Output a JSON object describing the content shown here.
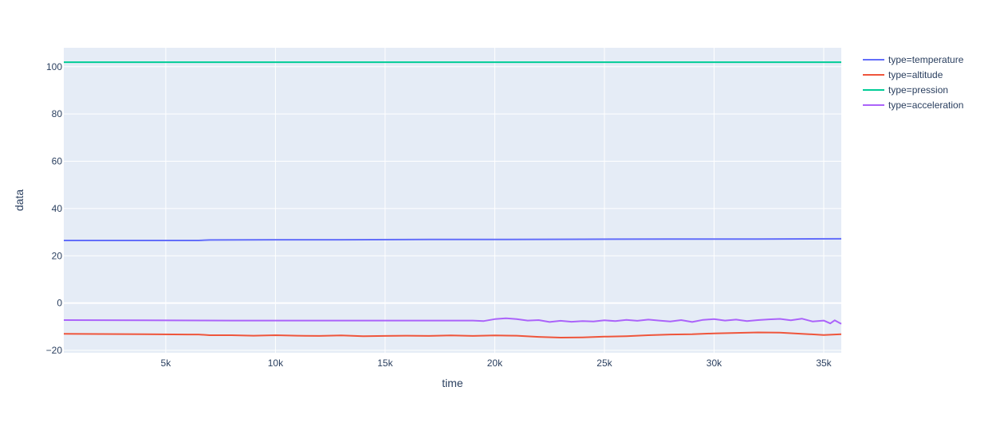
{
  "chart_data": {
    "type": "line",
    "xlabel": "time",
    "ylabel": "data",
    "xlim": [
      350,
      35800
    ],
    "ylim": [
      -21,
      108
    ],
    "grid": true,
    "legend_position": "top-right",
    "background_color": "#e5ecf6",
    "grid_color": "#ffffff",
    "x_ticks": [
      5000,
      10000,
      15000,
      20000,
      25000,
      30000,
      35000
    ],
    "x_tick_labels": [
      "5k",
      "10k",
      "15k",
      "20k",
      "25k",
      "30k",
      "35k"
    ],
    "y_ticks": [
      -20,
      0,
      20,
      40,
      60,
      80,
      100
    ],
    "y_tick_labels": [
      "−20",
      "0",
      "20",
      "40",
      "60",
      "80",
      "100"
    ],
    "series": [
      {
        "name": "type=temperature",
        "color": "#636efa",
        "x": [
          350,
          3000,
          6500,
          7000,
          10000,
          13000,
          17000,
          20000,
          24000,
          28000,
          32000,
          35800
        ],
        "y": [
          26.5,
          26.5,
          26.5,
          26.7,
          26.8,
          26.8,
          26.9,
          26.9,
          27.0,
          27.1,
          27.1,
          27.2
        ]
      },
      {
        "name": "type=altitude",
        "color": "#ef553b",
        "x": [
          350,
          2000,
          4000,
          6000,
          6500,
          7000,
          8000,
          9000,
          10000,
          11000,
          12000,
          13000,
          14000,
          15000,
          16000,
          17000,
          18000,
          19000,
          20000,
          21000,
          22000,
          23000,
          24000,
          25000,
          26000,
          27000,
          28000,
          29000,
          30000,
          31000,
          32000,
          33000,
          34000,
          35000,
          35800
        ],
        "y": [
          -13.0,
          -13.1,
          -13.2,
          -13.3,
          -13.3,
          -13.6,
          -13.6,
          -13.8,
          -13.6,
          -13.8,
          -13.9,
          -13.7,
          -14.0,
          -13.9,
          -13.8,
          -13.9,
          -13.7,
          -13.9,
          -13.7,
          -13.8,
          -14.3,
          -14.6,
          -14.5,
          -14.2,
          -14.0,
          -13.6,
          -13.3,
          -13.2,
          -12.8,
          -12.6,
          -12.4,
          -12.5,
          -13.0,
          -13.5,
          -13.2
        ]
      },
      {
        "name": "type=pression",
        "color": "#00cc96",
        "x": [
          350,
          35800
        ],
        "y": [
          101.9,
          101.9
        ]
      },
      {
        "name": "type=acceleration",
        "color": "#ab63fa",
        "x": [
          350,
          4000,
          8000,
          12000,
          16000,
          19000,
          19500,
          20000,
          20500,
          21000,
          21500,
          22000,
          22500,
          23000,
          23500,
          24000,
          24500,
          25000,
          25500,
          26000,
          26500,
          27000,
          27500,
          28000,
          28500,
          29000,
          29500,
          30000,
          30500,
          31000,
          31500,
          32000,
          32500,
          33000,
          33500,
          34000,
          34500,
          35000,
          35300,
          35500,
          35800
        ],
        "y": [
          -7.2,
          -7.3,
          -7.4,
          -7.4,
          -7.4,
          -7.4,
          -7.6,
          -6.8,
          -6.4,
          -6.8,
          -7.4,
          -7.2,
          -8.0,
          -7.5,
          -7.9,
          -7.6,
          -7.8,
          -7.3,
          -7.6,
          -7.1,
          -7.5,
          -7.0,
          -7.4,
          -7.8,
          -7.2,
          -8.0,
          -7.1,
          -6.8,
          -7.4,
          -7.0,
          -7.6,
          -7.2,
          -6.9,
          -6.7,
          -7.3,
          -6.6,
          -7.8,
          -7.4,
          -8.6,
          -7.3,
          -8.8
        ]
      }
    ]
  }
}
